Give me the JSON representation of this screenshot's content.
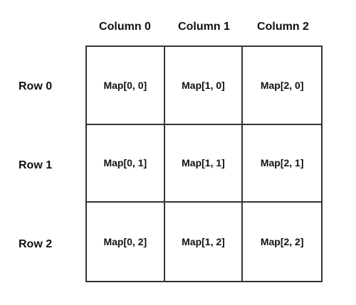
{
  "columns": [
    "Column 0",
    "Column 1",
    "Column 2"
  ],
  "rows": [
    "Row 0",
    "Row 1",
    "Row 2"
  ],
  "cells": [
    [
      "Map[0, 0]",
      "Map[1, 0]",
      "Map[2, 0]"
    ],
    [
      "Map[0, 1]",
      "Map[1, 1]",
      "Map[2, 1]"
    ],
    [
      "Map[0, 2]",
      "Map[1, 2]",
      "Map[2, 2]"
    ]
  ]
}
